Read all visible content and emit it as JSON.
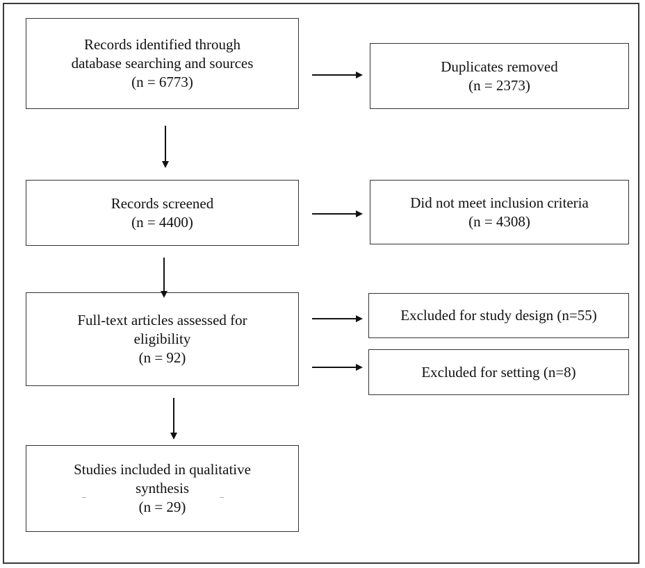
{
  "boxes": {
    "identified": {
      "line1": "Records identified through",
      "line2": "database searching and sources",
      "count": "(n = 6773)"
    },
    "duplicates": {
      "line1": "Duplicates removed",
      "count": "(n = 2373)"
    },
    "screened": {
      "line1": "Records screened",
      "count": "(n =  4400)"
    },
    "not_meet": {
      "line1": "Did not meet inclusion criteria",
      "count": "(n = 4308)"
    },
    "fulltext": {
      "line1": "Full-text articles assessed for",
      "line2": "eligibility",
      "count": "(n = 92)"
    },
    "excluded_design": {
      "line1": "Excluded for study design (n=55)"
    },
    "excluded_setting": {
      "line1": "Excluded for setting (n=8)"
    },
    "included": {
      "line1": "Studies included in qualitative",
      "line2": "synthesis",
      "count": "(n =  29)"
    }
  },
  "colors": {
    "border": "#333333",
    "arrow": "#111111",
    "background": "#ffffff"
  }
}
